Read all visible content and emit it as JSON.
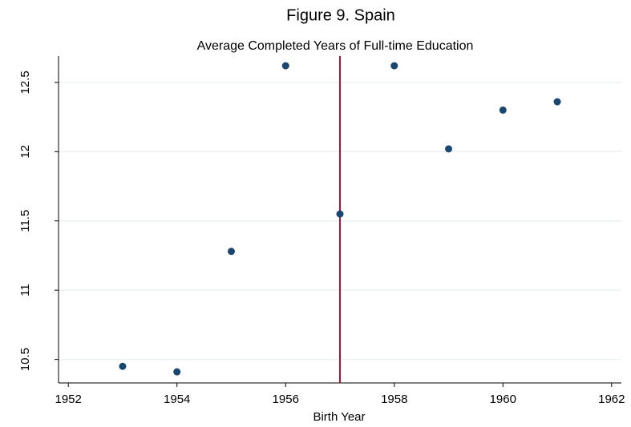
{
  "chart_data": {
    "type": "scatter",
    "title": "Figure 9. Spain",
    "subtitle": "Average Completed Years of Full-time Education",
    "x_label": "Birth Year",
    "x": [
      1953,
      1954,
      1955,
      1956,
      1957,
      1958,
      1959,
      1960,
      1961
    ],
    "series": [
      {
        "name": "Average years",
        "color": "#1a476f",
        "values": [
          10.45,
          10.41,
          11.28,
          12.62,
          11.55,
          12.62,
          12.02,
          12.3,
          12.36
        ]
      }
    ],
    "xlim": [
      1951.82,
      1962.18
    ],
    "xticks": [
      1952,
      1954,
      1956,
      1958,
      1960,
      1962
    ],
    "ylim": [
      10.33,
      12.69
    ],
    "yticks": [
      10.5,
      11,
      11.5,
      12,
      12.5
    ],
    "grid": true,
    "reference_line": {
      "x": 1957,
      "color": "#b0103a"
    }
  }
}
